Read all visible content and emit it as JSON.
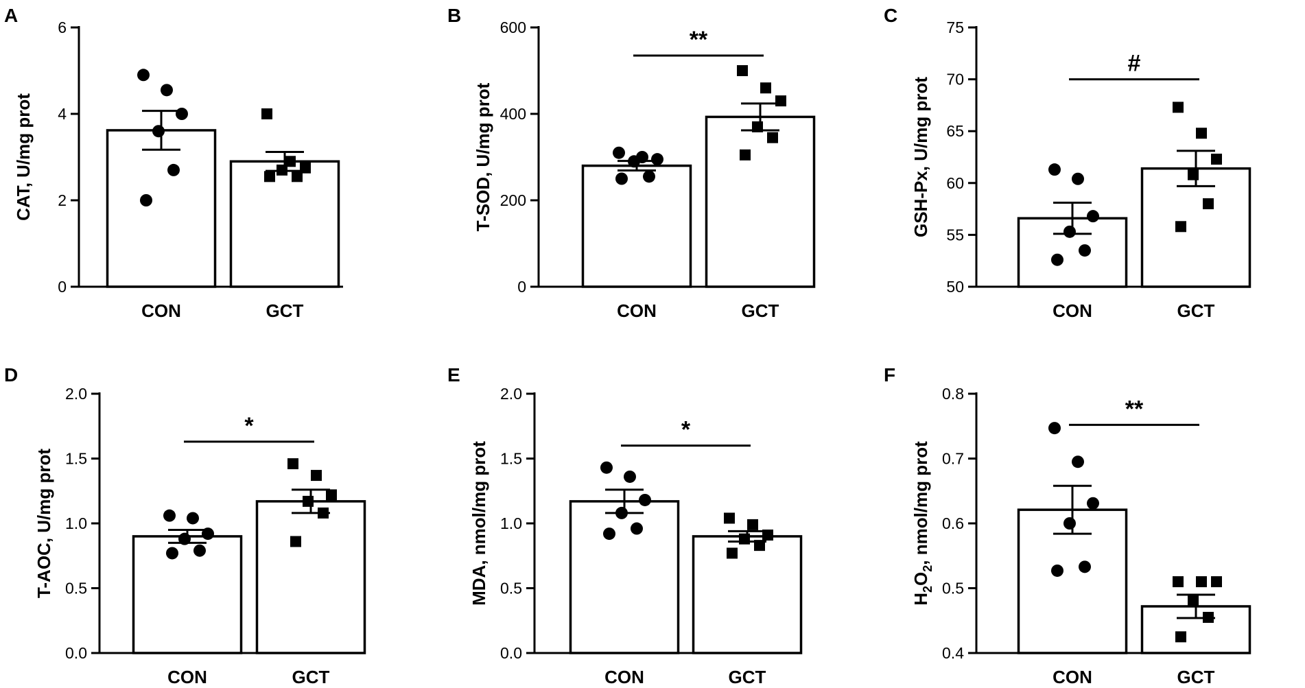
{
  "chart_data": [
    {
      "panel": "A",
      "type": "bar",
      "ylabel": "CAT, U/mg prot",
      "ylim": [
        0,
        6
      ],
      "ticks": [
        0,
        2,
        4,
        6
      ],
      "tick_labels": [
        "0",
        "2",
        "4",
        "6"
      ],
      "categories": [
        "CON",
        "GCT"
      ],
      "bars": [
        {
          "name": "CON",
          "mean": 3.62,
          "sem": 0.45,
          "marker": "circle",
          "points": [
            4.9,
            4.55,
            4.0,
            3.6,
            2.7,
            2.0
          ]
        },
        {
          "name": "GCT",
          "mean": 2.9,
          "sem": 0.22,
          "marker": "square",
          "points": [
            4.0,
            2.9,
            2.75,
            2.7,
            2.55,
            2.55
          ]
        }
      ],
      "significance": null
    },
    {
      "panel": "B",
      "type": "bar",
      "ylabel": "T-SOD, U/mg prot",
      "ylim": [
        0,
        600
      ],
      "ticks": [
        0,
        200,
        400,
        600
      ],
      "tick_labels": [
        "0",
        "200",
        "400",
        "600"
      ],
      "categories": [
        "CON",
        "GCT"
      ],
      "bars": [
        {
          "name": "CON",
          "mean": 280,
          "sem": 11,
          "marker": "circle",
          "points": [
            310,
            300,
            295,
            290,
            255,
            250
          ]
        },
        {
          "name": "GCT",
          "mean": 393,
          "sem": 31,
          "marker": "square",
          "points": [
            500,
            460,
            430,
            370,
            345,
            305
          ]
        }
      ],
      "significance": {
        "label": "**",
        "y": 535
      }
    },
    {
      "panel": "C",
      "type": "bar",
      "ylabel": "GSH-Px, U/mg prot",
      "ylim": [
        50,
        75
      ],
      "ticks": [
        50,
        55,
        60,
        65,
        70,
        75
      ],
      "tick_labels": [
        "50",
        "55",
        "60",
        "65",
        "70",
        "75"
      ],
      "categories": [
        "CON",
        "GCT"
      ],
      "bars": [
        {
          "name": "CON",
          "mean": 56.6,
          "sem": 1.5,
          "marker": "circle",
          "points": [
            61.3,
            60.4,
            56.8,
            55.3,
            53.5,
            52.6
          ]
        },
        {
          "name": "GCT",
          "mean": 61.4,
          "sem": 1.7,
          "marker": "square",
          "points": [
            67.3,
            64.8,
            62.3,
            60.8,
            58.0,
            55.8
          ]
        }
      ],
      "significance": {
        "label": "#",
        "y": 70.0
      }
    },
    {
      "panel": "D",
      "type": "bar",
      "ylabel": "T-AOC, U/mg prot",
      "ylim": [
        0,
        2.0
      ],
      "ticks": [
        0,
        0.5,
        1.0,
        1.5,
        2.0
      ],
      "tick_labels": [
        "0.0",
        "0.5",
        "1.0",
        "1.5",
        "2.0"
      ],
      "categories": [
        "CON",
        "GCT"
      ],
      "bars": [
        {
          "name": "CON",
          "mean": 0.9,
          "sem": 0.05,
          "marker": "circle",
          "points": [
            1.06,
            1.04,
            0.92,
            0.88,
            0.79,
            0.77
          ]
        },
        {
          "name": "GCT",
          "mean": 1.17,
          "sem": 0.09,
          "marker": "square",
          "points": [
            1.46,
            1.37,
            1.22,
            1.17,
            1.08,
            0.86
          ]
        }
      ],
      "significance": {
        "label": "*",
        "y": 1.63
      }
    },
    {
      "panel": "E",
      "type": "bar",
      "ylabel": "MDA, nmol/mg prot",
      "ylim": [
        0,
        2.0
      ],
      "ticks": [
        0,
        0.5,
        1.0,
        1.5,
        2.0
      ],
      "tick_labels": [
        "0.0",
        "0.5",
        "1.0",
        "1.5",
        "2.0"
      ],
      "categories": [
        "CON",
        "GCT"
      ],
      "bars": [
        {
          "name": "CON",
          "mean": 1.17,
          "sem": 0.09,
          "marker": "circle",
          "points": [
            1.43,
            1.36,
            1.18,
            1.08,
            0.96,
            0.92
          ]
        },
        {
          "name": "GCT",
          "mean": 0.9,
          "sem": 0.04,
          "marker": "square",
          "points": [
            1.04,
            0.99,
            0.91,
            0.88,
            0.83,
            0.77
          ]
        }
      ],
      "significance": {
        "label": "*",
        "y": 1.6
      }
    },
    {
      "panel": "F",
      "type": "bar",
      "ylabel": "H2O2, nmol/mg prot",
      "ylabel_parts": [
        "H",
        "2",
        "O",
        "2",
        ", nmol/mg prot"
      ],
      "ylim": [
        0.4,
        0.8
      ],
      "ticks": [
        0.4,
        0.5,
        0.6,
        0.7,
        0.8
      ],
      "tick_labels": [
        "0.4",
        "0.5",
        "0.6",
        "0.7",
        "0.8"
      ],
      "categories": [
        "CON",
        "GCT"
      ],
      "bars": [
        {
          "name": "CON",
          "mean": 0.621,
          "sem": 0.037,
          "marker": "circle",
          "points": [
            0.747,
            0.695,
            0.631,
            0.6,
            0.533,
            0.527
          ]
        },
        {
          "name": "GCT",
          "mean": 0.472,
          "sem": 0.018,
          "marker": "square",
          "points": [
            0.51,
            0.51,
            0.51,
            0.48,
            0.455,
            0.425
          ]
        }
      ],
      "significance": {
        "label": "**",
        "y": 0.752
      }
    }
  ]
}
